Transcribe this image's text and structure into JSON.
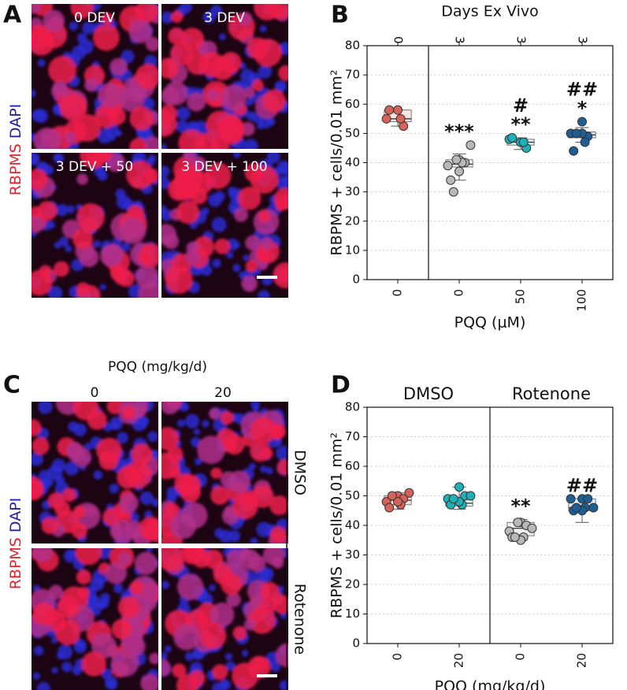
{
  "panel_letters": [
    "A",
    "B",
    "C",
    "D"
  ],
  "panel_a": {
    "stain_labels": [
      "RBPMS",
      "DAPI"
    ],
    "image_titles": [
      "0 DEV",
      "3 DEV",
      "3 DEV + 50",
      "3 DEV + 100"
    ]
  },
  "panel_c": {
    "stain_labels": [
      "RBPMS",
      "DAPI"
    ],
    "title": "PQQ (mg/kg/d)",
    "columns": [
      "0",
      "20"
    ],
    "rows": [
      "DMSO",
      "Rotenone"
    ]
  },
  "chart_data": [
    {
      "type": "box",
      "top_axis_label": "Days Ex Vivo",
      "top_ticks": [
        "0",
        "3",
        "3",
        "3"
      ],
      "categories": [
        "0",
        "0",
        "50",
        "100"
      ],
      "xlabel": "PQQ (μM)",
      "ylabel": "RBPMS + cells/0.01 mm²",
      "ylim": [
        0,
        80
      ],
      "yticks": [
        0,
        10,
        20,
        30,
        40,
        50,
        60,
        70,
        80
      ],
      "grid": true,
      "groups": [
        {
          "color": "#d6625c",
          "fill": "#fbe3e3",
          "points": [
            58,
            52.5,
            55,
            55,
            58
          ],
          "q1": 54,
          "median": 55,
          "q3": 58,
          "whisker": [
            52.5,
            58
          ],
          "annotation": []
        },
        {
          "color": "#b8b8b8",
          "fill": "#f1f1f1",
          "points": [
            41,
            40,
            39,
            40,
            34,
            37,
            30,
            46,
            41
          ],
          "q1": 38.5,
          "median": 39.5,
          "q3": 41,
          "whisker": [
            34,
            43
          ],
          "annotation": [
            "***"
          ]
        },
        {
          "color": "#1fb0b8",
          "fill": "#dff3f4",
          "points": [
            47,
            45,
            48,
            47,
            48.5
          ],
          "q1": 46,
          "median": 47,
          "q3": 48,
          "whisker": [
            44.5,
            48.5
          ],
          "annotation": [
            "#",
            "**"
          ]
        },
        {
          "color": "#1d5e94",
          "fill": "#e0ecf6",
          "points": [
            54,
            49,
            50,
            47,
            44,
            50,
            50
          ],
          "q1": 48.5,
          "median": 49.5,
          "q3": 50.5,
          "whisker": [
            47,
            52
          ],
          "annotation": [
            "##",
            "*"
          ]
        }
      ]
    },
    {
      "type": "box",
      "headers": [
        "DMSO",
        "Rotenone"
      ],
      "categories": [
        "0",
        "20",
        "0",
        "20"
      ],
      "xlabel": "PQQ (mg/kg/d)",
      "ylabel": "RBPMS + cells/0.01 mm²",
      "ylim": [
        0,
        80
      ],
      "yticks": [
        0,
        10,
        20,
        30,
        40,
        50,
        60,
        70,
        80
      ],
      "grid": true,
      "groups": [
        {
          "color": "#d6625c",
          "fill": "#fbe3e3",
          "points": [
            50,
            49,
            48,
            47,
            46,
            48,
            50,
            51
          ],
          "q1": 47,
          "median": 48.5,
          "q3": 50,
          "whisker": [
            45.5,
            51
          ],
          "annotation": []
        },
        {
          "color": "#1fb0b8",
          "fill": "#dff3f4",
          "points": [
            53,
            50,
            49,
            47,
            47,
            48,
            49,
            50
          ],
          "q1": 46.5,
          "median": 47.5,
          "q3": 49,
          "whisker": [
            45.5,
            53
          ],
          "annotation": []
        },
        {
          "color": "#b8b8b8",
          "fill": "#f1f1f1",
          "points": [
            41,
            40,
            38,
            36,
            36,
            35,
            36,
            39,
            41
          ],
          "q1": 36.5,
          "median": 39,
          "q3": 41,
          "whisker": [
            35,
            42
          ],
          "annotation": [
            "**"
          ]
        },
        {
          "color": "#1d5e94",
          "fill": "#e0ecf6",
          "points": [
            49,
            49,
            49,
            46,
            45,
            45,
            46,
            46
          ],
          "q1": 45,
          "median": 46,
          "q3": 49,
          "whisker": [
            41,
            49
          ],
          "annotation": [
            "##"
          ]
        }
      ]
    }
  ]
}
